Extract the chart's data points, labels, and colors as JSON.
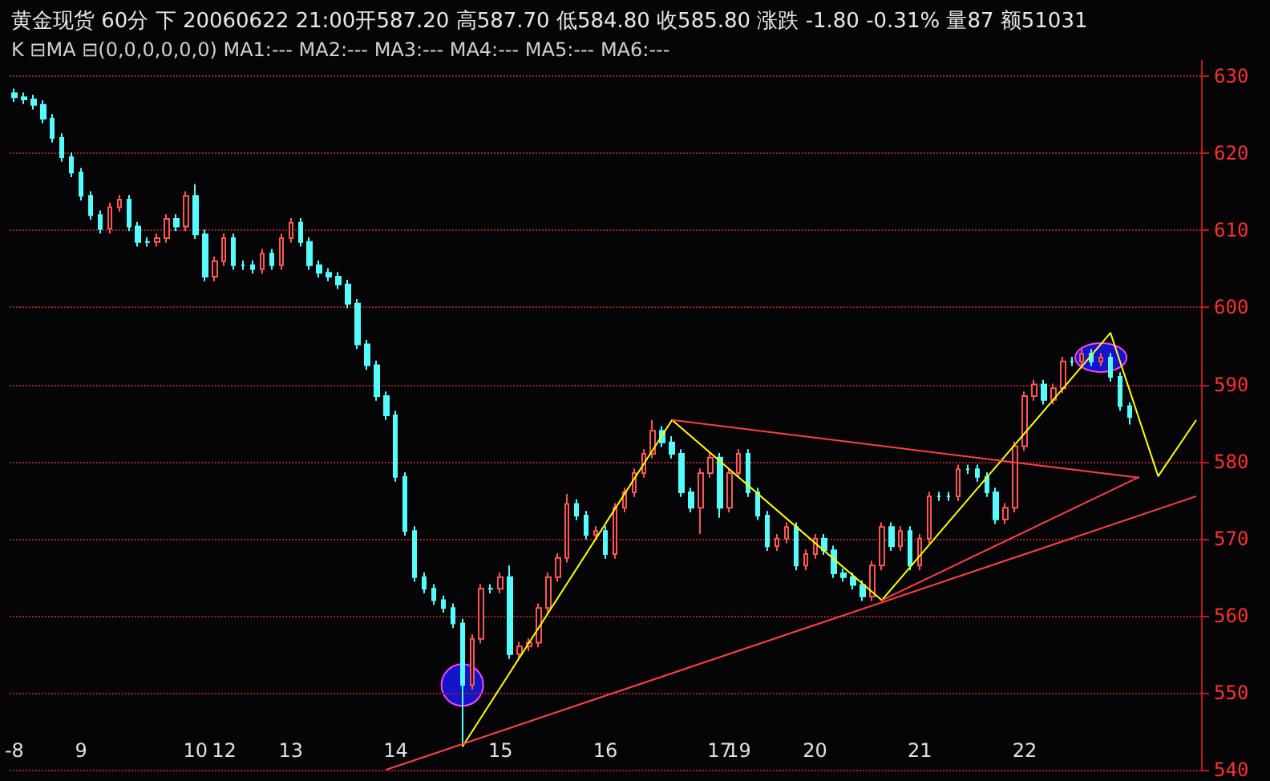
{
  "chart_data": {
    "type": "candlestick",
    "title": "黄金现货 60分 下 20060622 21:00开587.20 高587.70 低584.80 收585.80 涨跌 -1.80 -0.31% 量87 额51031",
    "subtitle": "K ⊟MA ⊟(0,0,0,0,0,0) MA1:--- MA2:--- MA3:--- MA4:--- MA5:--- MA6:---",
    "categories": [
      "-8",
      null,
      null,
      null,
      null,
      null,
      null,
      "9",
      null,
      null,
      null,
      null,
      null,
      null,
      null,
      null,
      null,
      null,
      null,
      "10",
      null,
      null,
      "12",
      null,
      null,
      null,
      null,
      null,
      null,
      "13",
      null,
      null,
      null,
      null,
      null,
      null,
      null,
      null,
      null,
      null,
      "14",
      null,
      null,
      null,
      null,
      null,
      null,
      null,
      null,
      null,
      null,
      "15",
      null,
      null,
      null,
      null,
      null,
      null,
      null,
      null,
      null,
      null,
      "16",
      null,
      null,
      null,
      null,
      null,
      null,
      null,
      null,
      null,
      null,
      null,
      "17",
      null,
      "19",
      null,
      null,
      null,
      null,
      null,
      null,
      null,
      "20",
      null,
      null,
      null,
      null,
      null,
      null,
      null,
      null,
      null,
      null,
      "21",
      null,
      null,
      null,
      null,
      null,
      null,
      null,
      null,
      null,
      null,
      "22",
      null,
      null,
      null,
      null,
      null,
      null,
      null,
      null,
      null,
      null,
      null,
      null,
      null,
      null,
      null,
      null,
      null,
      null
    ],
    "ylim": [
      540,
      632
    ],
    "yticks": [
      540,
      550,
      560,
      570,
      580,
      590,
      600,
      610,
      620,
      630
    ],
    "grid": "y",
    "marker": "none",
    "line_style": "solid",
    "series": [
      {
        "ohlc": [
          [
            627.8,
            628.4,
            626.7,
            627.3
          ],
          [
            627.3,
            627.9,
            626.4,
            627
          ],
          [
            627,
            627.6,
            625.7,
            626.3
          ],
          [
            626.3,
            626.9,
            623.9,
            624.5
          ],
          [
            624.5,
            625.1,
            621.4,
            622
          ],
          [
            622,
            622.6,
            618.9,
            619.5
          ],
          [
            619.5,
            620.1,
            616.9,
            617.5
          ],
          [
            617.5,
            618.1,
            613.9,
            614.5
          ],
          [
            614.5,
            615.1,
            611.4,
            612
          ],
          [
            612,
            612.6,
            609.6,
            610.2
          ],
          [
            610.2,
            613.6,
            609.6,
            613
          ],
          [
            613,
            614.6,
            612.4,
            614
          ],
          [
            614,
            614.6,
            609.9,
            610.5
          ],
          [
            610.5,
            611.1,
            607.9,
            608.5
          ],
          [
            608.5,
            609.1,
            607.9,
            608.5
          ],
          [
            608.5,
            609.6,
            607.9,
            609
          ],
          [
            609,
            612.1,
            608.4,
            611.5
          ],
          [
            611.5,
            612.1,
            609.9,
            610.5
          ],
          [
            610.5,
            615.1,
            609.9,
            614.5
          ],
          [
            614.5,
            616,
            608.9,
            609.5
          ],
          [
            609.5,
            610.1,
            603.4,
            604
          ],
          [
            604,
            606.6,
            603.4,
            606
          ],
          [
            606,
            609.6,
            605.4,
            609
          ],
          [
            609,
            609.6,
            604.9,
            605.5
          ],
          [
            605.5,
            606.1,
            604.9,
            605.5
          ],
          [
            605.5,
            606.1,
            604.4,
            605
          ],
          [
            605,
            607.6,
            604.4,
            607
          ],
          [
            607,
            607.6,
            604.9,
            605.5
          ],
          [
            605.5,
            609.6,
            604.9,
            609
          ],
          [
            609,
            611.6,
            608.4,
            611
          ],
          [
            611,
            611.6,
            607.9,
            608.5
          ],
          [
            608.5,
            609.1,
            604.9,
            605.5
          ],
          [
            605.5,
            606.1,
            603.9,
            604.5
          ],
          [
            604.5,
            605.1,
            603.4,
            604
          ],
          [
            604,
            604.6,
            602.4,
            603
          ],
          [
            603,
            603.6,
            599.9,
            600.5
          ],
          [
            600.5,
            601.1,
            594.6,
            595.2
          ],
          [
            595.2,
            595.8,
            591.9,
            592.5
          ],
          [
            592.5,
            593.1,
            587.9,
            588.5
          ],
          [
            588.5,
            589.1,
            585.4,
            586
          ],
          [
            586,
            586.6,
            577.4,
            578
          ],
          [
            578,
            578.6,
            570.4,
            571
          ],
          [
            571,
            571.6,
            564.4,
            565
          ],
          [
            565,
            565.6,
            562.9,
            563.5
          ],
          [
            563.5,
            564.1,
            561.4,
            562
          ],
          [
            562,
            562.6,
            560.4,
            561
          ],
          [
            561,
            561.6,
            558.4,
            559
          ],
          [
            559,
            559.6,
            543,
            551
          ],
          [
            551,
            557.6,
            550.4,
            557
          ],
          [
            557,
            564.1,
            556.4,
            563.5
          ],
          [
            563.5,
            564.1,
            562.9,
            563.5
          ],
          [
            563.5,
            565.6,
            562.9,
            565
          ],
          [
            565,
            566.5,
            554.4,
            555
          ],
          [
            555,
            556.6,
            554.4,
            556
          ],
          [
            556,
            557.1,
            555.4,
            556.5
          ],
          [
            556.5,
            561.6,
            555.9,
            561
          ],
          [
            561,
            565.6,
            560.4,
            565
          ],
          [
            565,
            568.1,
            564.4,
            567.5
          ],
          [
            567.5,
            575.8,
            566.9,
            574.5
          ],
          [
            574.5,
            575.1,
            572.4,
            573
          ],
          [
            573,
            573.6,
            569.9,
            570.5
          ],
          [
            570.5,
            571.6,
            569.9,
            571
          ],
          [
            571,
            571.6,
            567.4,
            568
          ],
          [
            568,
            574.6,
            567.4,
            574
          ],
          [
            574,
            576.6,
            573.4,
            576
          ],
          [
            576,
            579.1,
            575.4,
            578.5
          ],
          [
            578.5,
            581.6,
            577.9,
            581
          ],
          [
            581,
            585.4,
            580.4,
            584
          ],
          [
            584,
            584.6,
            581.9,
            582.5
          ],
          [
            582.5,
            583.3,
            580.4,
            581
          ],
          [
            581,
            581.6,
            575.4,
            576
          ],
          [
            576,
            576.6,
            573.4,
            574
          ],
          [
            574,
            579.1,
            570.6,
            578.5
          ],
          [
            578.5,
            581.1,
            577.9,
            580.5
          ],
          [
            580.5,
            581.1,
            572.7,
            574
          ],
          [
            574,
            579.1,
            573.4,
            578.5
          ],
          [
            578.5,
            581.6,
            577.9,
            581
          ],
          [
            581,
            581.6,
            575.4,
            576
          ],
          [
            576,
            576.6,
            572.4,
            573
          ],
          [
            573,
            573.6,
            568.4,
            569
          ],
          [
            569,
            570.6,
            568.4,
            570
          ],
          [
            570,
            572.1,
            569.4,
            571.5
          ],
          [
            571.5,
            572.1,
            565.9,
            566.5
          ],
          [
            566.5,
            568.6,
            565.9,
            568
          ],
          [
            568,
            570.6,
            567.4,
            570
          ],
          [
            570,
            570.6,
            567.9,
            568.5
          ],
          [
            568.5,
            569.1,
            564.9,
            565.5
          ],
          [
            565.5,
            566.1,
            564.4,
            565
          ],
          [
            565,
            565.6,
            563.4,
            564
          ],
          [
            564,
            564.6,
            561.9,
            562.5
          ],
          [
            562.5,
            567.1,
            561.9,
            566.5
          ],
          [
            566.5,
            572.1,
            565.9,
            571.5
          ],
          [
            571.5,
            572.1,
            568.4,
            569
          ],
          [
            569,
            571.6,
            568.4,
            571
          ],
          [
            571,
            571.6,
            565.9,
            566.5
          ],
          [
            566.5,
            570.6,
            565.9,
            570
          ],
          [
            570,
            576.1,
            569.4,
            575.5
          ],
          [
            575.5,
            576.1,
            574.9,
            575.5
          ],
          [
            575.5,
            576.1,
            574.9,
            575.5
          ],
          [
            575.5,
            579.6,
            574.9,
            579
          ],
          [
            579,
            579.6,
            578.4,
            579
          ],
          [
            579,
            579.6,
            577.4,
            578
          ],
          [
            578,
            578.6,
            575.4,
            576
          ],
          [
            576,
            576.6,
            571.9,
            572.5
          ],
          [
            572.5,
            574.6,
            571.9,
            574
          ],
          [
            574,
            582.6,
            573.4,
            582
          ],
          [
            582,
            589.1,
            581.4,
            588.5
          ],
          [
            588.5,
            590.6,
            587.9,
            590
          ],
          [
            590,
            590.6,
            587.4,
            588
          ],
          [
            588,
            590.1,
            587.4,
            589.5
          ],
          [
            589.5,
            593.6,
            588.9,
            593
          ],
          [
            593,
            593.6,
            592.4,
            593
          ],
          [
            593,
            594.6,
            592.4,
            594
          ],
          [
            594,
            594.6,
            592.4,
            593
          ],
          [
            593,
            594.1,
            592.4,
            593.5
          ],
          [
            593.5,
            594.1,
            590.4,
            591
          ],
          [
            591,
            591.6,
            586.6,
            587.2
          ],
          [
            587.2,
            587.7,
            584.8,
            585.8
          ],
          null,
          null,
          null,
          null,
          null,
          null,
          null
        ],
        "colors": [
          "#54fcfc",
          "#54fcfc",
          "#54fcfc",
          "#54fcfc",
          "#54fcfc",
          "#54fcfc",
          "#54fcfc",
          "#54fcfc",
          "#54fcfc",
          "#54fcfc",
          "#ff5454",
          "#ff5454",
          "#54fcfc",
          "#54fcfc",
          "#54fcfc",
          "#ff5454",
          "#ff5454",
          "#54fcfc",
          "#ff5454",
          "#54fcfc",
          "#54fcfc",
          "#ff5454",
          "#ff5454",
          "#54fcfc",
          "#54fcfc",
          "#54fcfc",
          "#ff5454",
          "#54fcfc",
          "#ff5454",
          "#ff5454",
          "#54fcfc",
          "#54fcfc",
          "#54fcfc",
          "#54fcfc",
          "#54fcfc",
          "#54fcfc",
          "#54fcfc",
          "#54fcfc",
          "#54fcfc",
          "#54fcfc",
          "#54fcfc",
          "#54fcfc",
          "#54fcfc",
          "#54fcfc",
          "#54fcfc",
          "#54fcfc",
          "#54fcfc",
          "#54fcfc",
          "#ff5454",
          "#ff5454",
          "#54fcfc",
          "#ff5454",
          "#54fcfc",
          "#ff5454",
          "#ff5454",
          "#ff5454",
          "#ff5454",
          "#ff5454",
          "#ff5454",
          "#54fcfc",
          "#54fcfc",
          "#ff5454",
          "#54fcfc",
          "#ff5454",
          "#ff5454",
          "#ff5454",
          "#ff5454",
          "#ff5454",
          "#54fcfc",
          "#54fcfc",
          "#54fcfc",
          "#54fcfc",
          "#ff5454",
          "#ff5454",
          "#54fcfc",
          "#ff5454",
          "#ff5454",
          "#54fcfc",
          "#54fcfc",
          "#54fcfc",
          "#ff5454",
          "#ff5454",
          "#54fcfc",
          "#ff5454",
          "#ff5454",
          "#54fcfc",
          "#54fcfc",
          "#54fcfc",
          "#54fcfc",
          "#54fcfc",
          "#ff5454",
          "#ff5454",
          "#54fcfc",
          "#ff5454",
          "#54fcfc",
          "#ff5454",
          "#ff5454",
          "#54fcfc",
          "#54fcfc",
          "#ff5454",
          "#54fcfc",
          "#54fcfc",
          "#54fcfc",
          "#54fcfc",
          "#ff5454",
          "#ff5454",
          "#ff5454",
          "#ff5454",
          "#54fcfc",
          "#ff5454",
          "#ff5454",
          "#54fcfc",
          "#ff5454",
          "#54fcfc",
          "#ff5454",
          "#54fcfc",
          "#54fcfc",
          "#54fcfc",
          null,
          null,
          null,
          null,
          null,
          null,
          null
        ]
      },
      {
        "type": "line",
        "color": "#ffff00",
        "values": [
          null,
          null,
          null,
          null,
          null,
          null,
          null,
          null,
          null,
          null,
          null,
          null,
          null,
          null,
          null,
          null,
          null,
          null,
          null,
          null,
          null,
          null,
          null,
          null,
          null,
          null,
          null,
          null,
          null,
          null,
          null,
          null,
          null,
          null,
          null,
          null,
          null,
          null,
          null,
          null,
          null,
          null,
          null,
          null,
          null,
          null,
          null,
          543,
          null,
          null,
          null,
          null,
          null,
          null,
          null,
          null,
          null,
          null,
          null,
          null,
          null,
          null,
          null,
          null,
          null,
          null,
          null,
          null,
          null,
          585.4,
          null,
          null,
          null,
          null,
          null,
          null,
          null,
          null,
          null,
          null,
          null,
          null,
          null,
          null,
          null,
          null,
          null,
          null,
          null,
          null,
          null,
          562,
          null,
          null,
          null,
          null,
          null,
          null,
          null,
          null,
          null,
          null,
          null,
          null,
          null,
          null,
          null,
          null,
          null,
          null,
          null,
          null,
          null,
          null,
          null,
          596.7,
          null,
          null,
          null,
          null,
          578.1,
          null,
          null,
          null,
          585.4
        ]
      },
      {
        "type": "line",
        "color": "#ff4040",
        "values": [
          null,
          null,
          null,
          null,
          null,
          null,
          null,
          null,
          null,
          null,
          null,
          null,
          null,
          null,
          null,
          null,
          null,
          null,
          null,
          null,
          null,
          null,
          null,
          null,
          null,
          null,
          null,
          null,
          null,
          null,
          null,
          null,
          null,
          null,
          null,
          null,
          null,
          null,
          null,
          null,
          null,
          null,
          null,
          null,
          null,
          null,
          null,
          null,
          null,
          null,
          null,
          null,
          null,
          null,
          null,
          null,
          null,
          null,
          null,
          null,
          null,
          null,
          null,
          null,
          null,
          null,
          null,
          null,
          null,
          585.4,
          null,
          null,
          null,
          null,
          null,
          null,
          null,
          null,
          null,
          null,
          null,
          null,
          null,
          null,
          null,
          null,
          null,
          null,
          null,
          null,
          null,
          null,
          null,
          null,
          null,
          null,
          null,
          null,
          null,
          null,
          null,
          null,
          null,
          null,
          null,
          null,
          null,
          null,
          null,
          null,
          null,
          null,
          null,
          null,
          null,
          null,
          null,
          null,
          577.9,
          null,
          null,
          null,
          null,
          null,
          null
        ]
      },
      {
        "type": "line",
        "color": "#ff4040",
        "values": [
          null,
          null,
          null,
          null,
          null,
          null,
          null,
          null,
          null,
          null,
          null,
          null,
          null,
          null,
          null,
          null,
          null,
          null,
          null,
          null,
          null,
          null,
          null,
          null,
          null,
          null,
          null,
          null,
          null,
          null,
          null,
          null,
          null,
          null,
          null,
          null,
          null,
          null,
          null,
          null,
          null,
          null,
          null,
          null,
          null,
          null,
          null,
          null,
          null,
          null,
          null,
          null,
          null,
          null,
          null,
          null,
          null,
          null,
          null,
          null,
          null,
          null,
          null,
          null,
          null,
          null,
          null,
          null,
          null,
          null,
          null,
          null,
          null,
          null,
          null,
          null,
          null,
          null,
          null,
          null,
          null,
          null,
          null,
          null,
          null,
          null,
          null,
          null,
          null,
          null,
          null,
          562,
          null,
          null,
          null,
          null,
          null,
          null,
          null,
          null,
          null,
          null,
          null,
          null,
          null,
          null,
          null,
          null,
          null,
          null,
          null,
          null,
          null,
          null,
          null,
          null,
          null,
          null,
          578,
          null,
          null,
          null,
          null,
          null,
          null
        ]
      },
      {
        "type": "line",
        "color": "#ff4040",
        "values": [
          null,
          null,
          null,
          null,
          null,
          null,
          null,
          null,
          null,
          null,
          null,
          null,
          null,
          null,
          null,
          null,
          null,
          null,
          null,
          null,
          null,
          null,
          null,
          null,
          null,
          null,
          null,
          null,
          null,
          null,
          null,
          null,
          null,
          null,
          null,
          null,
          null,
          null,
          null,
          540,
          null,
          null,
          null,
          null,
          null,
          null,
          null,
          null,
          null,
          null,
          null,
          null,
          null,
          null,
          null,
          null,
          null,
          null,
          null,
          null,
          null,
          null,
          null,
          null,
          null,
          null,
          null,
          null,
          null,
          null,
          null,
          null,
          null,
          null,
          null,
          null,
          null,
          null,
          null,
          null,
          null,
          null,
          null,
          null,
          null,
          null,
          null,
          null,
          null,
          null,
          null,
          null,
          null,
          null,
          null,
          null,
          null,
          null,
          null,
          null,
          null,
          null,
          null,
          null,
          null,
          null,
          null,
          null,
          null,
          null,
          null,
          null,
          null,
          null,
          null,
          null,
          null,
          null,
          null,
          null,
          null,
          null,
          null,
          null,
          575.5
        ]
      }
    ]
  }
}
